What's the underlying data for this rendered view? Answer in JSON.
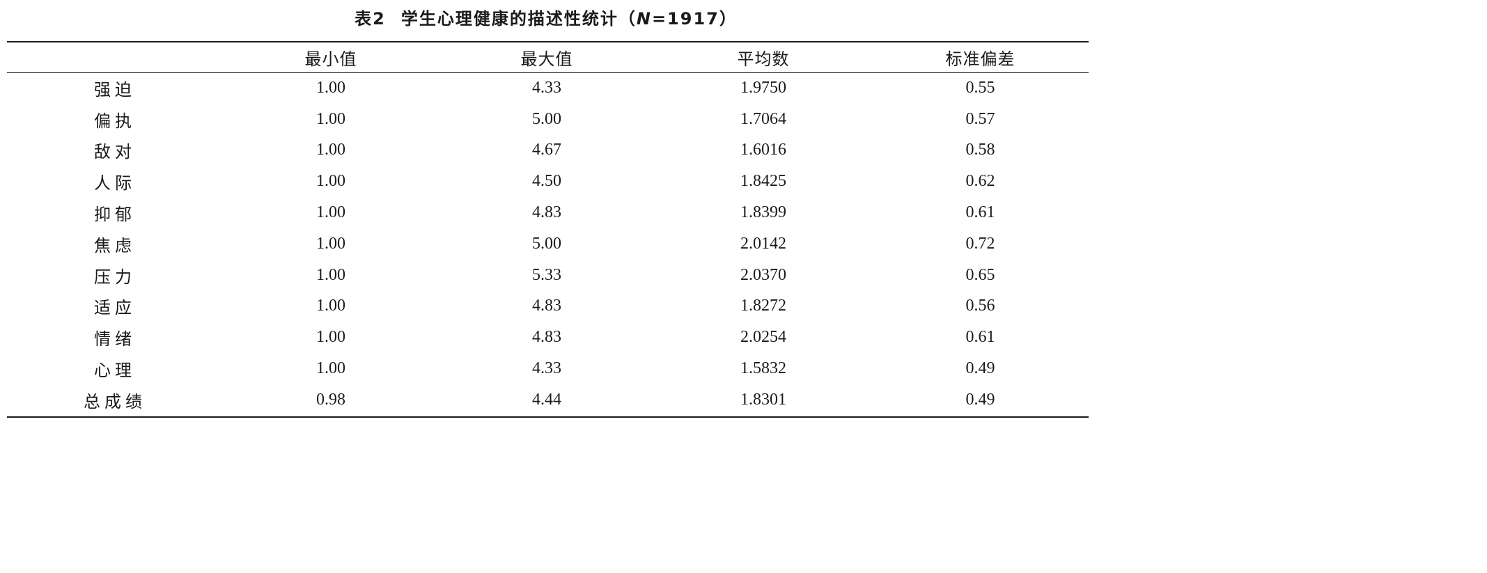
{
  "caption": {
    "prefix": "表2",
    "title": "学生心理健康的描述性统计",
    "open_paren": "（",
    "n_symbol": "N",
    "n_value": "=1917",
    "close_paren": "）"
  },
  "table": {
    "headers": [
      "",
      "最小值",
      "最大值",
      "平均数",
      "标准偏差"
    ],
    "rows": [
      {
        "label": "强迫",
        "min": "1.00",
        "max": "4.33",
        "mean": "1.9750",
        "sd": "0.55"
      },
      {
        "label": "偏执",
        "min": "1.00",
        "max": "5.00",
        "mean": "1.7064",
        "sd": "0.57"
      },
      {
        "label": "敌对",
        "min": "1.00",
        "max": "4.67",
        "mean": "1.6016",
        "sd": "0.58"
      },
      {
        "label": "人际",
        "min": "1.00",
        "max": "4.50",
        "mean": "1.8425",
        "sd": "0.62"
      },
      {
        "label": "抑郁",
        "min": "1.00",
        "max": "4.83",
        "mean": "1.8399",
        "sd": "0.61"
      },
      {
        "label": "焦虑",
        "min": "1.00",
        "max": "5.00",
        "mean": "2.0142",
        "sd": "0.72"
      },
      {
        "label": "压力",
        "min": "1.00",
        "max": "5.33",
        "mean": "2.0370",
        "sd": "0.65"
      },
      {
        "label": "适应",
        "min": "1.00",
        "max": "4.83",
        "mean": "1.8272",
        "sd": "0.56"
      },
      {
        "label": "情绪",
        "min": "1.00",
        "max": "4.83",
        "mean": "2.0254",
        "sd": "0.61"
      },
      {
        "label": "心理",
        "min": "1.00",
        "max": "4.33",
        "mean": "1.5832",
        "sd": "0.49"
      },
      {
        "label": "总成绩",
        "min": "0.98",
        "max": "4.44",
        "mean": "1.8301",
        "sd": "0.49"
      }
    ]
  }
}
